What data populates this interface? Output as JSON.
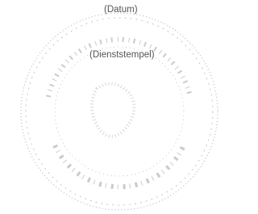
{
  "date_label": "(Datum)",
  "stamp_label": "(Dienststempel)"
}
